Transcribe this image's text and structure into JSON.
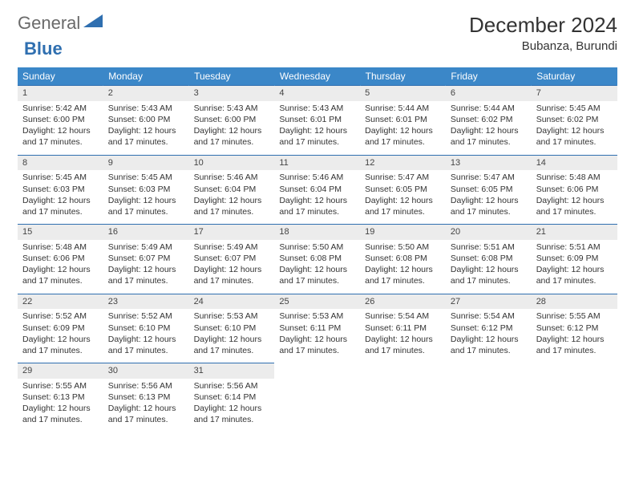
{
  "logo": {
    "text1": "General",
    "text2": "Blue",
    "shape_color": "#2f6fb0"
  },
  "title": "December 2024",
  "location": "Bubanza, Burundi",
  "header_bg": "#3b87c8",
  "header_text_color": "#ffffff",
  "daynum_bg": "#ececec",
  "border_color": "#2f6fb0",
  "weekdays": [
    "Sunday",
    "Monday",
    "Tuesday",
    "Wednesday",
    "Thursday",
    "Friday",
    "Saturday"
  ],
  "weeks": [
    [
      {
        "n": "1",
        "sr": "5:42 AM",
        "ss": "6:00 PM",
        "dl": "12 hours and 17 minutes."
      },
      {
        "n": "2",
        "sr": "5:43 AM",
        "ss": "6:00 PM",
        "dl": "12 hours and 17 minutes."
      },
      {
        "n": "3",
        "sr": "5:43 AM",
        "ss": "6:00 PM",
        "dl": "12 hours and 17 minutes."
      },
      {
        "n": "4",
        "sr": "5:43 AM",
        "ss": "6:01 PM",
        "dl": "12 hours and 17 minutes."
      },
      {
        "n": "5",
        "sr": "5:44 AM",
        "ss": "6:01 PM",
        "dl": "12 hours and 17 minutes."
      },
      {
        "n": "6",
        "sr": "5:44 AM",
        "ss": "6:02 PM",
        "dl": "12 hours and 17 minutes."
      },
      {
        "n": "7",
        "sr": "5:45 AM",
        "ss": "6:02 PM",
        "dl": "12 hours and 17 minutes."
      }
    ],
    [
      {
        "n": "8",
        "sr": "5:45 AM",
        "ss": "6:03 PM",
        "dl": "12 hours and 17 minutes."
      },
      {
        "n": "9",
        "sr": "5:45 AM",
        "ss": "6:03 PM",
        "dl": "12 hours and 17 minutes."
      },
      {
        "n": "10",
        "sr": "5:46 AM",
        "ss": "6:04 PM",
        "dl": "12 hours and 17 minutes."
      },
      {
        "n": "11",
        "sr": "5:46 AM",
        "ss": "6:04 PM",
        "dl": "12 hours and 17 minutes."
      },
      {
        "n": "12",
        "sr": "5:47 AM",
        "ss": "6:05 PM",
        "dl": "12 hours and 17 minutes."
      },
      {
        "n": "13",
        "sr": "5:47 AM",
        "ss": "6:05 PM",
        "dl": "12 hours and 17 minutes."
      },
      {
        "n": "14",
        "sr": "5:48 AM",
        "ss": "6:06 PM",
        "dl": "12 hours and 17 minutes."
      }
    ],
    [
      {
        "n": "15",
        "sr": "5:48 AM",
        "ss": "6:06 PM",
        "dl": "12 hours and 17 minutes."
      },
      {
        "n": "16",
        "sr": "5:49 AM",
        "ss": "6:07 PM",
        "dl": "12 hours and 17 minutes."
      },
      {
        "n": "17",
        "sr": "5:49 AM",
        "ss": "6:07 PM",
        "dl": "12 hours and 17 minutes."
      },
      {
        "n": "18",
        "sr": "5:50 AM",
        "ss": "6:08 PM",
        "dl": "12 hours and 17 minutes."
      },
      {
        "n": "19",
        "sr": "5:50 AM",
        "ss": "6:08 PM",
        "dl": "12 hours and 17 minutes."
      },
      {
        "n": "20",
        "sr": "5:51 AM",
        "ss": "6:08 PM",
        "dl": "12 hours and 17 minutes."
      },
      {
        "n": "21",
        "sr": "5:51 AM",
        "ss": "6:09 PM",
        "dl": "12 hours and 17 minutes."
      }
    ],
    [
      {
        "n": "22",
        "sr": "5:52 AM",
        "ss": "6:09 PM",
        "dl": "12 hours and 17 minutes."
      },
      {
        "n": "23",
        "sr": "5:52 AM",
        "ss": "6:10 PM",
        "dl": "12 hours and 17 minutes."
      },
      {
        "n": "24",
        "sr": "5:53 AM",
        "ss": "6:10 PM",
        "dl": "12 hours and 17 minutes."
      },
      {
        "n": "25",
        "sr": "5:53 AM",
        "ss": "6:11 PM",
        "dl": "12 hours and 17 minutes."
      },
      {
        "n": "26",
        "sr": "5:54 AM",
        "ss": "6:11 PM",
        "dl": "12 hours and 17 minutes."
      },
      {
        "n": "27",
        "sr": "5:54 AM",
        "ss": "6:12 PM",
        "dl": "12 hours and 17 minutes."
      },
      {
        "n": "28",
        "sr": "5:55 AM",
        "ss": "6:12 PM",
        "dl": "12 hours and 17 minutes."
      }
    ],
    [
      {
        "n": "29",
        "sr": "5:55 AM",
        "ss": "6:13 PM",
        "dl": "12 hours and 17 minutes."
      },
      {
        "n": "30",
        "sr": "5:56 AM",
        "ss": "6:13 PM",
        "dl": "12 hours and 17 minutes."
      },
      {
        "n": "31",
        "sr": "5:56 AM",
        "ss": "6:14 PM",
        "dl": "12 hours and 17 minutes."
      },
      null,
      null,
      null,
      null
    ]
  ],
  "labels": {
    "sunrise": "Sunrise: ",
    "sunset": "Sunset: ",
    "daylight": "Daylight: "
  }
}
